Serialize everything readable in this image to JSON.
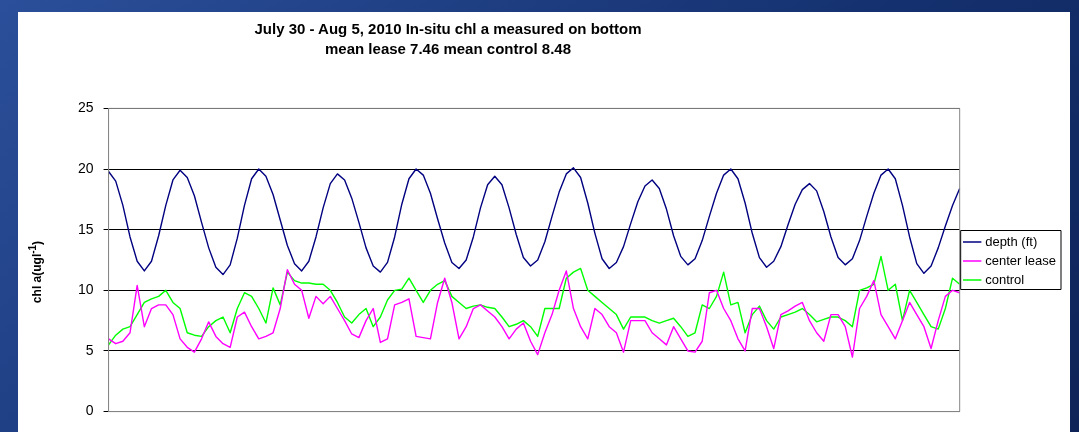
{
  "chart_data": {
    "type": "line",
    "title": "July 30 - Aug 5, 2010 In-situ chl a measured on bottom",
    "subtitle": "mean lease 7.46 mean control 8.48",
    "ylabel": "chl a(ugl$^{-1}$)",
    "categories": [
      null,
      null,
      null,
      null,
      null,
      null,
      null,
      null,
      null,
      null,
      null,
      null,
      null,
      null,
      null,
      null,
      null,
      null,
      null,
      null,
      null,
      null,
      null,
      null,
      null,
      null,
      null,
      null,
      null,
      null,
      null,
      null,
      null,
      null,
      null,
      null,
      null,
      null,
      null,
      null,
      null,
      null,
      null,
      null,
      null,
      null,
      null,
      null,
      null,
      null,
      null,
      null,
      null,
      null,
      null,
      null,
      null,
      null,
      null,
      null,
      null,
      null,
      null,
      null,
      null,
      null,
      null,
      null,
      null,
      null,
      null,
      null,
      null,
      null,
      null,
      null,
      null,
      null,
      null,
      null,
      null,
      null,
      null,
      null,
      null,
      null,
      null,
      null,
      null,
      null,
      null,
      null,
      null,
      null,
      null,
      null,
      null,
      null,
      null,
      null,
      null,
      null,
      null,
      null,
      null,
      null,
      null,
      null,
      null,
      null,
      null,
      null,
      null,
      null,
      null,
      null,
      null,
      null,
      null,
      null
    ],
    "series": [
      {
        "name": "depth (ft)",
        "color": "#000080",
        "values": [
          19.8,
          19.0,
          17.0,
          14.4,
          12.4,
          11.6,
          12.4,
          14.5,
          17.0,
          19.1,
          19.9,
          19.3,
          17.8,
          15.6,
          13.5,
          11.9,
          11.3,
          12.1,
          14.3,
          17.0,
          19.2,
          20.0,
          19.4,
          17.9,
          15.8,
          13.7,
          12.2,
          11.6,
          12.4,
          14.4,
          16.8,
          18.8,
          19.6,
          19.1,
          17.6,
          15.6,
          13.5,
          12.0,
          11.5,
          12.3,
          14.4,
          17.1,
          19.2,
          20.0,
          19.5,
          18.0,
          15.9,
          13.9,
          12.3,
          11.8,
          12.5,
          14.4,
          16.8,
          18.7,
          19.4,
          18.7,
          16.8,
          14.6,
          12.7,
          12.0,
          12.5,
          14.0,
          16.1,
          18.1,
          19.6,
          20.1,
          19.3,
          17.2,
          14.7,
          12.6,
          11.8,
          12.3,
          13.6,
          15.5,
          17.3,
          18.6,
          19.1,
          18.4,
          16.7,
          14.5,
          12.8,
          12.1,
          12.6,
          14.1,
          16.1,
          18.0,
          19.5,
          20.0,
          19.2,
          17.2,
          14.7,
          12.7,
          11.9,
          12.4,
          13.6,
          15.4,
          17.1,
          18.3,
          18.8,
          18.2,
          16.5,
          14.4,
          12.7,
          12.1,
          12.6,
          14.1,
          16.1,
          18.0,
          19.5,
          20.0,
          19.2,
          17.0,
          14.4,
          12.2,
          11.4,
          12.0,
          13.5,
          15.3,
          17.0,
          18.4
        ]
      },
      {
        "name": "center lease",
        "color": "#ff00ff",
        "values": [
          6.0,
          5.6,
          5.8,
          6.5,
          10.4,
          7.0,
          8.5,
          8.8,
          8.8,
          8.0,
          6.0,
          5.3,
          4.9,
          6.0,
          7.4,
          6.2,
          5.6,
          5.3,
          7.8,
          8.2,
          7.0,
          6.0,
          6.2,
          6.5,
          8.5,
          11.7,
          10.5,
          10.0,
          7.7,
          9.5,
          8.9,
          9.5,
          8.5,
          7.5,
          6.4,
          6.1,
          7.5,
          8.5,
          5.7,
          6.0,
          8.8,
          9.0,
          9.3,
          6.2,
          6.1,
          6.0,
          9.0,
          11.0,
          9.0,
          6.0,
          7.0,
          8.5,
          8.8,
          8.3,
          7.8,
          7.0,
          6.0,
          6.8,
          7.3,
          5.8,
          4.7,
          6.5,
          8.0,
          10.0,
          11.6,
          8.5,
          7.0,
          6.0,
          8.5,
          8.0,
          7.0,
          6.5,
          4.9,
          7.5,
          7.5,
          7.5,
          6.5,
          6.0,
          5.5,
          7.0,
          6.0,
          5.0,
          4.9,
          5.8,
          9.8,
          10.0,
          8.5,
          7.5,
          6.0,
          5.0,
          8.5,
          8.5,
          7.0,
          5.2,
          8.0,
          8.3,
          8.7,
          9.0,
          7.5,
          6.5,
          5.8,
          8.0,
          8.0,
          7.0,
          4.5,
          8.5,
          9.5,
          10.8,
          8.0,
          7.0,
          6.0,
          7.5,
          9.0,
          8.0,
          7.0,
          5.2,
          7.5,
          9.5,
          10.0,
          9.8
        ]
      },
      {
        "name": "control",
        "color": "#00ff00",
        "values": [
          5.5,
          6.3,
          6.8,
          7.0,
          8.0,
          9.0,
          9.3,
          9.5,
          10.0,
          9.0,
          8.5,
          6.5,
          6.3,
          6.2,
          7.0,
          7.5,
          7.8,
          6.5,
          8.5,
          9.8,
          9.5,
          8.5,
          7.3,
          10.2,
          8.8,
          11.5,
          10.8,
          10.6,
          10.6,
          10.5,
          10.5,
          10.0,
          9.0,
          7.8,
          7.3,
          8.0,
          8.5,
          7.0,
          7.8,
          9.2,
          10.0,
          10.1,
          11.0,
          10.0,
          9.0,
          10.0,
          10.5,
          10.8,
          9.5,
          9.0,
          8.5,
          8.7,
          8.8,
          8.6,
          8.5,
          7.8,
          7.0,
          7.2,
          7.5,
          7.0,
          6.2,
          8.5,
          8.5,
          8.5,
          11.0,
          11.5,
          11.8,
          10.0,
          9.5,
          9.0,
          8.5,
          8.0,
          6.8,
          7.8,
          7.8,
          7.8,
          7.5,
          7.3,
          7.5,
          7.7,
          7.0,
          6.2,
          6.5,
          8.8,
          8.5,
          9.5,
          11.5,
          8.8,
          9.0,
          6.5,
          8.0,
          8.7,
          7.5,
          6.8,
          7.8,
          8.0,
          8.2,
          8.5,
          8.0,
          7.4,
          7.6,
          7.8,
          7.8,
          7.5,
          7.0,
          10.0,
          10.2,
          10.5,
          12.8,
          10.0,
          10.5,
          7.5,
          10.0,
          9.0,
          8.0,
          7.0,
          6.8,
          8.5,
          11.0,
          10.5
        ]
      }
    ],
    "ylim": [
      0,
      25
    ],
    "yticks": [
      0,
      5,
      10,
      15,
      20,
      25
    ],
    "grid": "y",
    "legend": "right",
    "marker": "none",
    "tick_labels": "y"
  }
}
